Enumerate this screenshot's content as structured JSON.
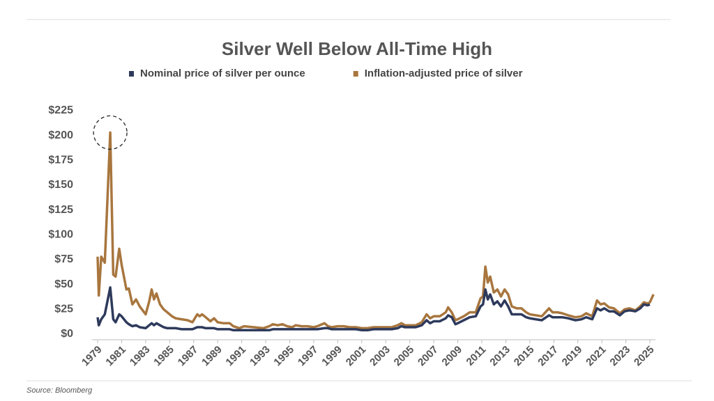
{
  "chart_data": {
    "type": "line",
    "title": "Silver Well Below All-Time High",
    "source": "Source: Bloomberg",
    "x": [
      1979.0,
      1979.1,
      1979.3,
      1979.6,
      1980.05,
      1980.3,
      1980.5,
      1980.8,
      1981.0,
      1981.4,
      1981.6,
      1981.9,
      1982.2,
      1982.5,
      1983.0,
      1983.3,
      1983.5,
      1983.7,
      1983.9,
      1984.2,
      1984.5,
      1984.8,
      1985.2,
      1985.5,
      1986.0,
      1986.5,
      1986.9,
      1987.3,
      1987.5,
      1987.7,
      1988.0,
      1988.4,
      1988.7,
      1989.0,
      1989.5,
      1990.0,
      1990.3,
      1990.8,
      1991.2,
      1992.0,
      1992.8,
      1993.3,
      1993.6,
      1994.0,
      1994.4,
      1994.8,
      1995.2,
      1995.5,
      1996.0,
      1996.5,
      1997.0,
      1997.3,
      1997.9,
      1998.2,
      1998.5,
      1999.0,
      1999.5,
      2000.0,
      2000.5,
      2001.0,
      2001.5,
      2002.0,
      2002.5,
      2003.0,
      2003.5,
      2004.0,
      2004.3,
      2004.6,
      2005.0,
      2005.5,
      2006.0,
      2006.4,
      2006.7,
      2007.0,
      2007.5,
      2008.0,
      2008.2,
      2008.5,
      2008.8,
      2009.0,
      2009.5,
      2010.0,
      2010.5,
      2010.9,
      2011.1,
      2011.3,
      2011.5,
      2011.7,
      2012.0,
      2012.3,
      2012.6,
      2012.9,
      2013.2,
      2013.5,
      2013.9,
      2014.3,
      2014.7,
      2015.0,
      2015.5,
      2016.0,
      2016.6,
      2016.9,
      2017.3,
      2017.7,
      2018.2,
      2018.8,
      2019.3,
      2019.7,
      2020.2,
      2020.6,
      2020.9,
      2021.2,
      2021.6,
      2022.0,
      2022.5,
      2022.9,
      2023.3,
      2023.8,
      2024.2,
      2024.5,
      2024.8,
      2025.0,
      2025.3
    ],
    "series": [
      {
        "name": "Nominal price of silver per ounce",
        "color": "#2e3a5c",
        "values": [
          17,
          9,
          15,
          20,
          47,
          15,
          12,
          20,
          18,
          12,
          10,
          8,
          9,
          7,
          6,
          9,
          11,
          9,
          11,
          9,
          7,
          6,
          6,
          6,
          5,
          5,
          5,
          7,
          7,
          7,
          6,
          6,
          6,
          5,
          5,
          5,
          4,
          4,
          4,
          4,
          4,
          4,
          5,
          5,
          5,
          5,
          5,
          5,
          5,
          5,
          5,
          5,
          6,
          6,
          5,
          5,
          5,
          5,
          5,
          4,
          4,
          5,
          5,
          5,
          5,
          6,
          8,
          7,
          7,
          7,
          9,
          14,
          11,
          13,
          13,
          16,
          19,
          17,
          10,
          11,
          14,
          17,
          18,
          28,
          30,
          45,
          35,
          40,
          30,
          33,
          28,
          34,
          28,
          20,
          20,
          20,
          17,
          16,
          15,
          14,
          19,
          17,
          17,
          17,
          16,
          14,
          15,
          17,
          15,
          26,
          24,
          26,
          23,
          23,
          19,
          23,
          24,
          23,
          26,
          30,
          29,
          30,
          null
        ]
      },
      {
        "name": "Inflation-adjusted price of silver",
        "color": "#a8763e",
        "values": [
          78,
          39,
          78,
          72,
          203,
          60,
          58,
          86,
          70,
          45,
          46,
          30,
          35,
          28,
          20,
          33,
          45,
          35,
          41,
          30,
          25,
          22,
          18,
          16,
          15,
          14,
          12,
          20,
          18,
          20,
          17,
          13,
          16,
          12,
          11,
          11,
          8,
          6,
          8,
          7,
          6,
          8,
          10,
          9,
          10,
          8,
          7,
          9,
          8,
          8,
          7,
          8,
          11,
          8,
          7,
          8,
          8,
          7,
          7,
          6,
          6,
          7,
          7,
          7,
          7,
          9,
          11,
          9,
          9,
          9,
          12,
          20,
          16,
          18,
          18,
          22,
          27,
          22,
          14,
          15,
          18,
          22,
          22,
          36,
          38,
          68,
          52,
          58,
          42,
          45,
          38,
          45,
          40,
          28,
          26,
          26,
          22,
          20,
          19,
          18,
          26,
          22,
          22,
          21,
          19,
          17,
          18,
          21,
          18,
          34,
          30,
          31,
          27,
          26,
          21,
          25,
          26,
          24,
          28,
          32,
          31,
          32,
          40
        ]
      }
    ],
    "ylim": [
      0,
      225
    ],
    "yticks": [
      {
        "value": 0,
        "label": "$0"
      },
      {
        "value": 25,
        "label": "$25"
      },
      {
        "value": 50,
        "label": "$50"
      },
      {
        "value": 75,
        "label": "$75"
      },
      {
        "value": 100,
        "label": "$100"
      },
      {
        "value": 125,
        "label": "$125"
      },
      {
        "value": 150,
        "label": "$150"
      },
      {
        "value": 175,
        "label": "$175"
      },
      {
        "value": 200,
        "label": "$200"
      },
      {
        "value": 225,
        "label": "$225"
      }
    ],
    "xlim": [
      1979,
      2025
    ],
    "xticks": [
      1979,
      1981,
      1983,
      1985,
      1987,
      1989,
      1991,
      1993,
      1995,
      1997,
      1999,
      2001,
      2003,
      2005,
      2007,
      2009,
      2011,
      2013,
      2015,
      2017,
      2019,
      2021,
      2023,
      2025
    ],
    "legend": "top"
  }
}
